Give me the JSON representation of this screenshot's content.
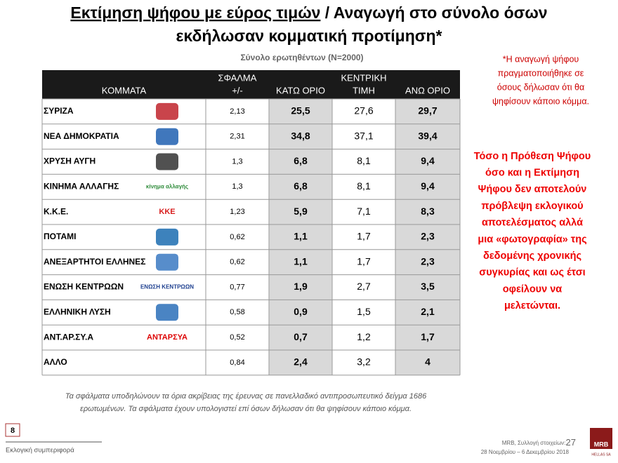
{
  "header": {
    "title_underlined": "Εκτίμηση ψήφου με εύρος τιμών",
    "title_rest": " / Αναγωγή στο σύνολο όσων",
    "title_line2": "εκδήλωσαν κομματική προτίμηση*",
    "subtitle": "Σύνολο ερωτηθέντων (N=2000)"
  },
  "table": {
    "columns": [
      [
        "ΚΟΜΜΑΤΑ"
      ],
      [
        "ΣΦΑΛΜΑ",
        "+/-"
      ],
      [
        "ΚΑΤΩ ΟΡΙΟ"
      ],
      [
        "ΚΕΝΤΡΙΚΗ",
        "ΤΙΜΗ"
      ],
      [
        "ΑΝΩ ΟΡΙΟ"
      ]
    ],
    "rows": [
      {
        "party": "ΣΥΡΙΖΑ",
        "error": "2,13",
        "low": "25,5",
        "central": "27,6",
        "high": "29,7"
      },
      {
        "party": "ΝΕΑ ΔΗΜΟΚΡΑΤΙΑ",
        "error": "2,31",
        "low": "34,8",
        "central": "37,1",
        "high": "39,4"
      },
      {
        "party": "ΧΡΥΣΗ ΑΥΓΗ",
        "error": "1,3",
        "low": "6,8",
        "central": "8,1",
        "high": "9,4"
      },
      {
        "party": "ΚΙΝΗΜΑ ΑΛΛΑΓΗΣ",
        "error": "1,3",
        "low": "6,8",
        "central": "8,1",
        "high": "9,4",
        "logo_text": "κίνημα αλλαγής"
      },
      {
        "party": "Κ.Κ.Ε.",
        "error": "1,23",
        "low": "5,9",
        "central": "7,1",
        "high": "8,3",
        "logo_text": "ΚΚΕ"
      },
      {
        "party": "ΠΟΤΑΜΙ",
        "error": "0,62",
        "low": "1,1",
        "central": "1,7",
        "high": "2,3"
      },
      {
        "party": "ΑΝΕΞΑΡΤΗΤΟΙ ΕΛΛΗΝΕΣ",
        "error": "0,62",
        "low": "1,1",
        "central": "1,7",
        "high": "2,3"
      },
      {
        "party": "ΕΝΩΣΗ ΚΕΝΤΡΩΩΝ",
        "error": "0,77",
        "low": "1,9",
        "central": "2,7",
        "high": "3,5",
        "logo_text": "ΕΝΩΣΗ ΚΕΝΤΡΩΩΝ"
      },
      {
        "party": "ΕΛΛΗΝΙΚΗ ΛΥΣΗ",
        "error": "0,58",
        "low": "0,9",
        "central": "1,5",
        "high": "2,1"
      },
      {
        "party": "ΑΝΤ.ΑΡ.ΣΥ.Α",
        "error": "0,52",
        "low": "0,7",
        "central": "1,2",
        "high": "1,7",
        "logo_text": "ΑΝΤΑΡΣΥΑ"
      },
      {
        "party": "ΑΛΛΟ",
        "error": "0,84",
        "low": "2,4",
        "central": "3,2",
        "high": "4"
      }
    ]
  },
  "side_note": [
    "*Η αναγωγή ψήφου",
    "πραγματοποιήθηκε σε",
    "όσους δήλωσαν ότι θα",
    "ψηφίσουν κάποιο κόμμα."
  ],
  "disclaimer": [
    "Τόσο η Πρόθεση Ψήφου",
    "όσο και η Εκτίμηση",
    "Ψήφου δεν αποτελούν",
    "πρόβλεψη εκλογικού",
    "αποτελέσματος αλλά",
    "μια «φωτογραφία» της",
    "δεδομένης χρονικής",
    "συγκυρίας και ως έτσι",
    "οφείλουν να",
    "μελετώνται."
  ],
  "footnote": [
    "Τα σφάλματα υποδηλώνουν τα όρια ακρίβειας της έρευνας σε πανελλαδικό αντιπροσωπευτικό δείγμα 1686",
    "ερωτωμένων. Τα σφάλματα έχουν υπολογιστεί επί όσων δήλωσαν ότι θα ψηφίσουν κάποιο κόμμα."
  ],
  "footer": {
    "page_number": "8",
    "section": "Εκλογική συμπεριφορά",
    "source": "MRB, Συλλογή στοιχείων:",
    "source_page": "27",
    "dates": "28 Νοεμβρίου – 6 Δεκεμβρίου 2018",
    "logo": "MRB",
    "logo_sub": "HELLAS SA"
  }
}
